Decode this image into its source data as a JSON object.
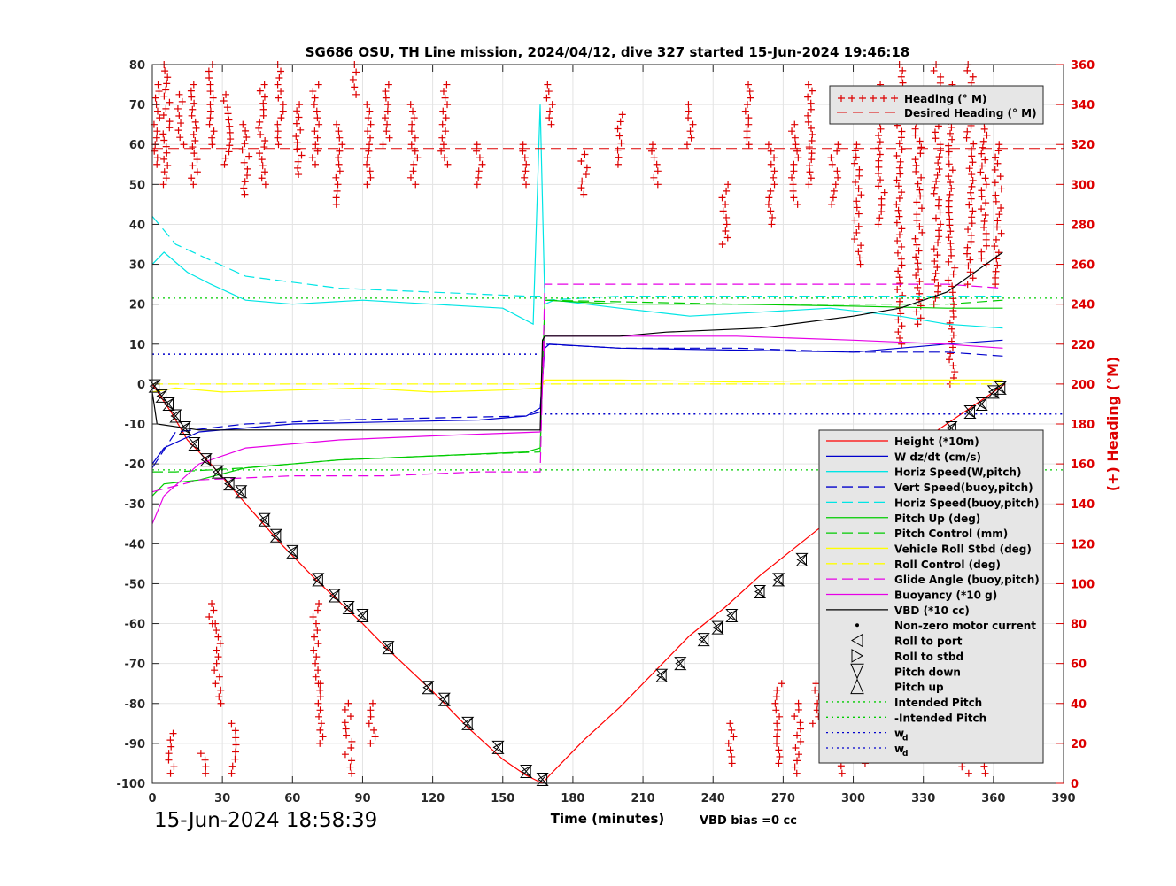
{
  "chart_data": {
    "type": "line",
    "title": "SG686 OSU, TH Line mission, 2024/04/12, dive 327 started 15-Jun-2024 19:46:18",
    "xlabel": "Time (minutes)",
    "ylabel": "",
    "y2label": "(+) Heading (°M)",
    "xlim": [
      0,
      390
    ],
    "ylim": [
      -100,
      80
    ],
    "y2lim": [
      0,
      360
    ],
    "x_ticks": [
      "0",
      "30",
      "60",
      "90",
      "120",
      "150",
      "180",
      "210",
      "240",
      "270",
      "300",
      "330",
      "360",
      "390"
    ],
    "y_ticks": [
      "80",
      "70",
      "60",
      "50",
      "40",
      "30",
      "20",
      "10",
      "0",
      "-10",
      "-20",
      "-30",
      "-40",
      "-50",
      "-60",
      "-70",
      "-80",
      "-90",
      "-100"
    ],
    "y2_ticks": [
      "360",
      "340",
      "320",
      "300",
      "280",
      "260",
      "240",
      "220",
      "200",
      "180",
      "160",
      "140",
      "120",
      "100",
      "80",
      "60",
      "40",
      "20",
      "0"
    ],
    "grid": true,
    "bottom_left_text": "15-Jun-2024 18:58:39",
    "vbd_text": "VBD bias =0 cc",
    "colors": {
      "height": "#ff0000",
      "w": "#0000cc",
      "horiz_speed_w": "#00e5e5",
      "vert_speed_buoy": "#0000cc",
      "horiz_speed_buoy": "#00e5e5",
      "pitch": "#00cc00",
      "roll": "#ffff00",
      "glide_angle": "#e600e6",
      "buoyancy": "#e600e6",
      "vbd": "#000000",
      "heading": "#dd0000"
    },
    "legend_top": {
      "position": "top-right",
      "entries": [
        "Heading (° M)",
        "Desired Heading (° M)"
      ]
    },
    "legend_main": {
      "position": "right",
      "entries": [
        "Height (*10m)",
        "W dz/dt (cm/s)",
        "Horiz Speed(W,pitch)",
        "Vert Speed(buoy,pitch)",
        "Horiz Speed(buoy,pitch)",
        "Pitch Up (deg)",
        "Pitch Control (mm)",
        "Vehicle Roll Stbd (deg)",
        "Roll Control (deg)",
        "Glide Angle (buoy,pitch)",
        "Buoyancy (*10 g)",
        "VBD (*10 cc)",
        "Non-zero motor current",
        "Roll to port",
        "Roll to stbd",
        "Pitch down",
        "Pitch up",
        "Intended Pitch",
        "-Intended Pitch",
        "w",
        "w"
      ],
      "subscript": "d"
    },
    "series": [
      {
        "name": "Height (*10m)",
        "x": [
          0,
          8,
          15,
          25,
          40,
          55,
          70,
          90,
          100,
          120,
          135,
          150,
          160,
          167,
          170,
          185,
          200,
          215,
          230,
          245,
          260,
          275,
          290,
          305,
          320,
          335,
          350,
          365
        ],
        "y": [
          0,
          -7,
          -14,
          -20,
          -30,
          -40,
          -49,
          -60,
          -66,
          -77,
          -86,
          -94,
          -98,
          -100,
          -98,
          -89,
          -81,
          -72,
          -63,
          -56,
          -48,
          -41,
          -34,
          -26,
          -19,
          -12,
          -6,
          0
        ]
      },
      {
        "name": "W dz/dt (cm/s)",
        "x": [
          0,
          5,
          20,
          40,
          60,
          100,
          140,
          160,
          166,
          168,
          170,
          200,
          250,
          300,
          320,
          340,
          364
        ],
        "y": [
          -20,
          -16,
          -12,
          -11,
          -10,
          -9.5,
          -9,
          -8,
          -6,
          9,
          10,
          9,
          8.5,
          8,
          9,
          10,
          11
        ]
      },
      {
        "name": "Horiz Speed(W,pitch)",
        "x": [
          0,
          5,
          15,
          25,
          40,
          60,
          90,
          120,
          150,
          163,
          166,
          168,
          172,
          200,
          230,
          260,
          290,
          320,
          340,
          364
        ],
        "y": [
          30,
          33,
          28,
          25,
          21,
          20,
          21,
          20,
          19,
          15,
          70,
          20,
          21,
          19,
          17,
          18,
          19,
          17,
          15,
          14
        ]
      },
      {
        "name": "Vert Speed(buoy,pitch)",
        "x": [
          0,
          10,
          40,
          80,
          120,
          160,
          166,
          168,
          200,
          250,
          300,
          340,
          364
        ],
        "y": [
          -21,
          -12,
          -10,
          -9,
          -8.5,
          -8,
          -7,
          10,
          9,
          9,
          8,
          8,
          7
        ]
      },
      {
        "name": "Horiz Speed(buoy,pitch)",
        "x": [
          0,
          10,
          40,
          80,
          120,
          160,
          166,
          168,
          200,
          250,
          300,
          340,
          364
        ],
        "y": [
          42,
          35,
          27,
          24,
          23,
          22,
          22,
          21,
          22,
          22,
          22,
          22,
          22
        ]
      },
      {
        "name": "Pitch Up (deg)",
        "x": [
          0,
          5,
          20,
          40,
          80,
          120,
          160,
          166,
          168,
          200,
          250,
          300,
          340,
          364
        ],
        "y": [
          -28,
          -25,
          -24,
          -21,
          -19,
          -18,
          -17,
          -16,
          21,
          20,
          20,
          19.5,
          19,
          19
        ]
      },
      {
        "name": "Pitch Control (mm)",
        "x": [
          0,
          10,
          40,
          80,
          120,
          166,
          168,
          250,
          340,
          364
        ],
        "y": [
          -22,
          -22,
          -21,
          -19,
          -18,
          -17,
          21,
          20,
          20,
          21
        ]
      },
      {
        "name": "Vehicle Roll Stbd (deg)",
        "x": [
          0,
          10,
          30,
          60,
          90,
          120,
          150,
          166,
          168,
          200,
          250,
          300,
          340,
          364
        ],
        "y": [
          -2,
          -1,
          -2,
          -1.5,
          -1,
          -2,
          -1.5,
          -1,
          1,
          1,
          0.5,
          1,
          1,
          1
        ]
      },
      {
        "name": "Roll Control (deg)",
        "x": [
          0,
          40,
          80,
          120,
          166,
          168,
          250,
          364
        ],
        "y": [
          0,
          0,
          0,
          0,
          0,
          0,
          0,
          0
        ]
      },
      {
        "name": "Glide Angle (buoy,pitch)",
        "x": [
          0,
          20,
          60,
          100,
          140,
          166,
          168,
          200,
          250,
          300,
          340,
          364
        ],
        "y": [
          -27,
          -24,
          -23,
          -23,
          -22,
          -22,
          25,
          25,
          25,
          25,
          25,
          24
        ]
      },
      {
        "name": "Buoyancy (*10 g)",
        "x": [
          0,
          5,
          20,
          40,
          80,
          120,
          166,
          168,
          200,
          250,
          300,
          340,
          364
        ],
        "y": [
          -35,
          -28,
          -20,
          -16,
          -14,
          -13,
          -12,
          12,
          12,
          12,
          11,
          10,
          9
        ]
      },
      {
        "name": "VBD (*10 cc)",
        "x": [
          0,
          2,
          20,
          60,
          100,
          140,
          166,
          167,
          168,
          200,
          220,
          260,
          300,
          320,
          340,
          364
        ],
        "y": [
          -2,
          -10,
          -11.5,
          -11.5,
          -11.5,
          -11.5,
          -11.5,
          11,
          12,
          12,
          13,
          14,
          17,
          19,
          23,
          33
        ]
      },
      {
        "name": "Intended Pitch",
        "x": [
          0,
          390
        ],
        "y": [
          21.5,
          21.5
        ]
      },
      {
        "name": "-Intended Pitch",
        "x": [
          0,
          390
        ],
        "y": [
          -21.5,
          -21.5
        ]
      },
      {
        "name": "w",
        "subscript": "d",
        "x": [
          0,
          166
        ],
        "y": [
          7.5,
          7.5
        ]
      },
      {
        "name": "w",
        "subscript": "d",
        "x": [
          168,
          390
        ],
        "y": [
          -7.5,
          -7.5
        ]
      },
      {
        "name": "Desired Heading (° M)",
        "axis": "right",
        "x": [
          0,
          390
        ],
        "y": [
          318,
          318
        ]
      }
    ],
    "heading_clusters": [
      {
        "x": 2,
        "y": [
          310,
          350
        ]
      },
      {
        "x": 6,
        "y": [
          300,
          360
        ]
      },
      {
        "x": 12,
        "y": [
          320,
          345
        ]
      },
      {
        "x": 18,
        "y": [
          300,
          350
        ]
      },
      {
        "x": 25,
        "y": [
          320,
          360
        ]
      },
      {
        "x": 32,
        "y": [
          310,
          345
        ]
      },
      {
        "x": 40,
        "y": [
          295,
          330
        ]
      },
      {
        "x": 47,
        "y": [
          300,
          350
        ]
      },
      {
        "x": 55,
        "y": [
          320,
          360
        ]
      },
      {
        "x": 63,
        "y": [
          305,
          340
        ]
      },
      {
        "x": 70,
        "y": [
          310,
          350
        ]
      },
      {
        "x": 80,
        "y": [
          290,
          330
        ]
      },
      {
        "x": 86,
        "y": [
          345,
          360
        ]
      },
      {
        "x": 92,
        "y": [
          300,
          340
        ]
      },
      {
        "x": 100,
        "y": [
          320,
          350
        ]
      },
      {
        "x": 112,
        "y": [
          300,
          340
        ]
      },
      {
        "x": 125,
        "y": [
          310,
          350
        ]
      },
      {
        "x": 140,
        "y": [
          300,
          320
        ]
      },
      {
        "x": 160,
        "y": [
          300,
          320
        ]
      },
      {
        "x": 170,
        "y": [
          330,
          350
        ]
      },
      {
        "x": 185,
        "y": [
          295,
          315
        ]
      },
      {
        "x": 200,
        "y": [
          310,
          335
        ]
      },
      {
        "x": 215,
        "y": [
          300,
          320
        ]
      },
      {
        "x": 230,
        "y": [
          320,
          340
        ]
      },
      {
        "x": 245,
        "y": [
          270,
          300
        ]
      },
      {
        "x": 255,
        "y": [
          320,
          350
        ]
      },
      {
        "x": 265,
        "y": [
          280,
          320
        ]
      },
      {
        "x": 275,
        "y": [
          290,
          330
        ]
      },
      {
        "x": 282,
        "y": [
          300,
          350
        ]
      },
      {
        "x": 292,
        "y": [
          290,
          320
        ]
      },
      {
        "x": 302,
        "y": [
          260,
          320
        ]
      },
      {
        "x": 312,
        "y": [
          280,
          350
        ]
      },
      {
        "x": 320,
        "y": [
          220,
          360
        ]
      },
      {
        "x": 328,
        "y": [
          230,
          340
        ]
      },
      {
        "x": 336,
        "y": [
          240,
          360
        ]
      },
      {
        "x": 342,
        "y": [
          200,
          350
        ]
      },
      {
        "x": 350,
        "y": [
          250,
          360
        ]
      },
      {
        "x": 356,
        "y": [
          260,
          340
        ]
      },
      {
        "x": 362,
        "y": [
          250,
          320
        ]
      },
      {
        "x": 8,
        "y": [
          5,
          25
        ]
      },
      {
        "x": 22,
        "y": [
          5,
          15
        ]
      },
      {
        "x": 25,
        "y": [
          80,
          90
        ]
      },
      {
        "x": 28,
        "y": [
          40,
          80
        ]
      },
      {
        "x": 35,
        "y": [
          5,
          30
        ]
      },
      {
        "x": 70,
        "y": [
          50,
          90
        ]
      },
      {
        "x": 72,
        "y": [
          20,
          50
        ]
      },
      {
        "x": 84,
        "y": [
          5,
          40
        ]
      },
      {
        "x": 94,
        "y": [
          20,
          40
        ]
      },
      {
        "x": 248,
        "y": [
          10,
          30
        ]
      },
      {
        "x": 268,
        "y": [
          10,
          50
        ]
      },
      {
        "x": 276,
        "y": [
          5,
          40
        ]
      },
      {
        "x": 284,
        "y": [
          30,
          50
        ]
      },
      {
        "x": 296,
        "y": [
          5,
          20
        ]
      },
      {
        "x": 306,
        "y": [
          10,
          20
        ]
      },
      {
        "x": 348,
        "y": [
          5,
          25
        ]
      },
      {
        "x": 356,
        "y": [
          5,
          30
        ]
      }
    ],
    "markers_pitch": {
      "x": [
        1,
        4,
        7,
        10,
        14,
        18,
        23,
        28,
        33,
        38,
        48,
        53,
        60,
        71,
        78,
        84,
        90,
        101,
        118,
        125,
        135,
        148,
        160,
        167,
        218,
        226,
        236,
        242,
        248,
        260,
        268,
        278,
        290,
        295,
        306,
        314,
        322,
        326,
        336,
        342,
        350,
        355,
        360,
        363
      ],
      "y": [
        -0.5,
        -3,
        -5,
        -8,
        -11,
        -15,
        -19,
        -22,
        -25,
        -27,
        -34,
        -38,
        -42,
        -49,
        -53,
        -56,
        -58,
        -66,
        -76,
        -79,
        -85,
        -91,
        -97,
        -99,
        -73,
        -70,
        -64,
        -61,
        -58,
        -52,
        -49,
        -44,
        -38,
        -35,
        -29,
        -26,
        -21,
        -19,
        -14,
        -11,
        -7,
        -5,
        -2,
        -1
      ]
    }
  }
}
